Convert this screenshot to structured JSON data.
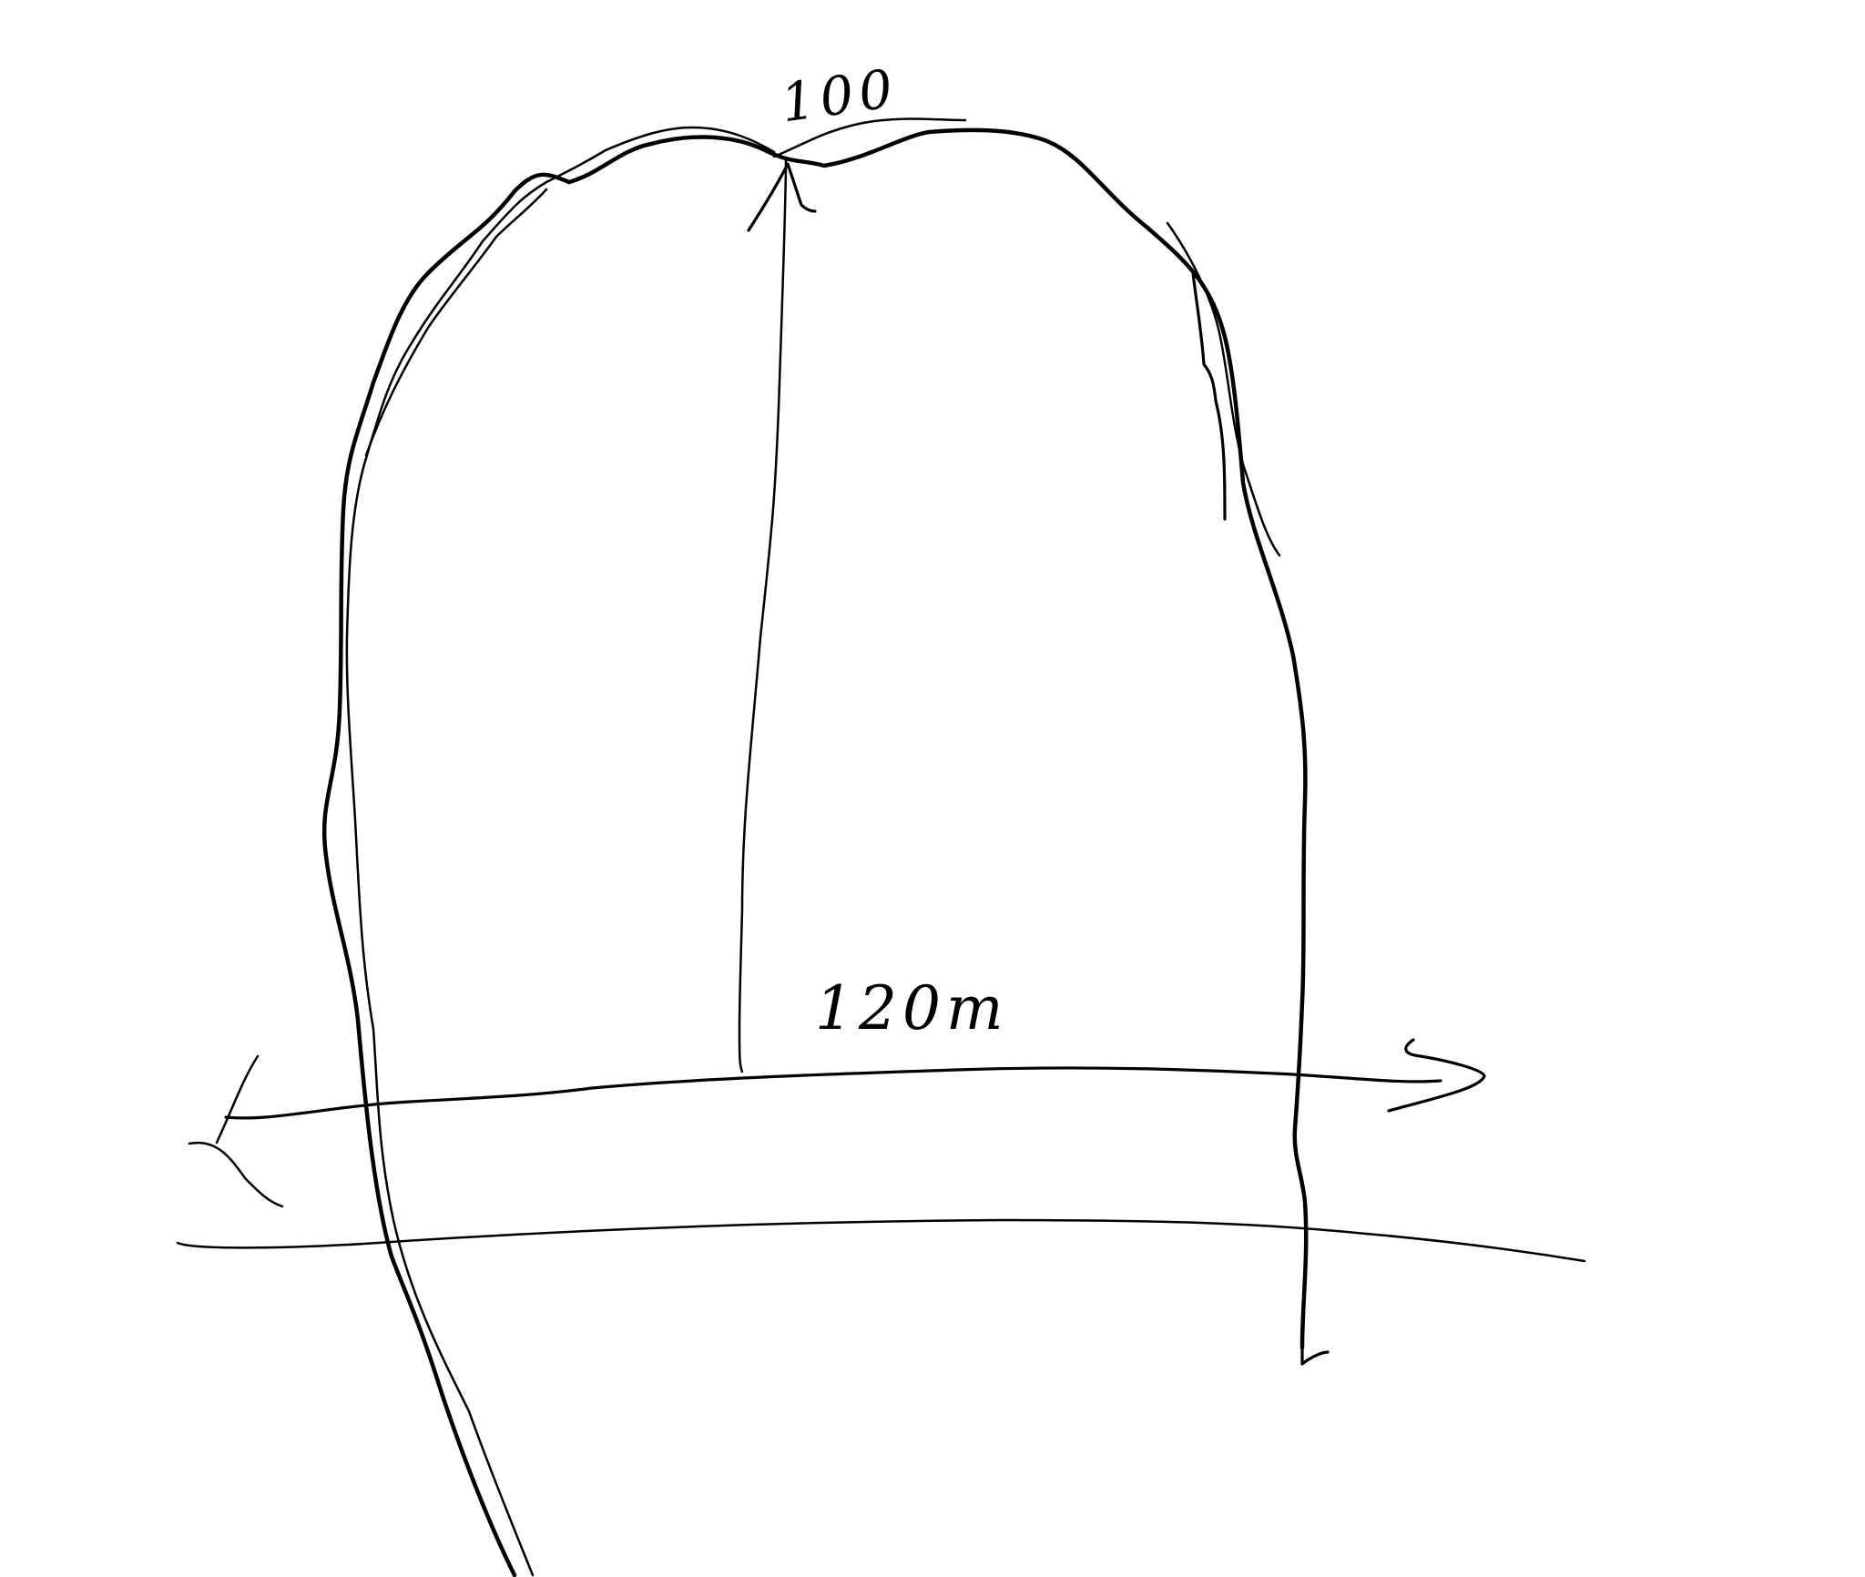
{
  "labels": {
    "height_label": "100",
    "width_label": "120m"
  },
  "colors": {
    "stroke": "#000000",
    "background": "#ffffff"
  }
}
